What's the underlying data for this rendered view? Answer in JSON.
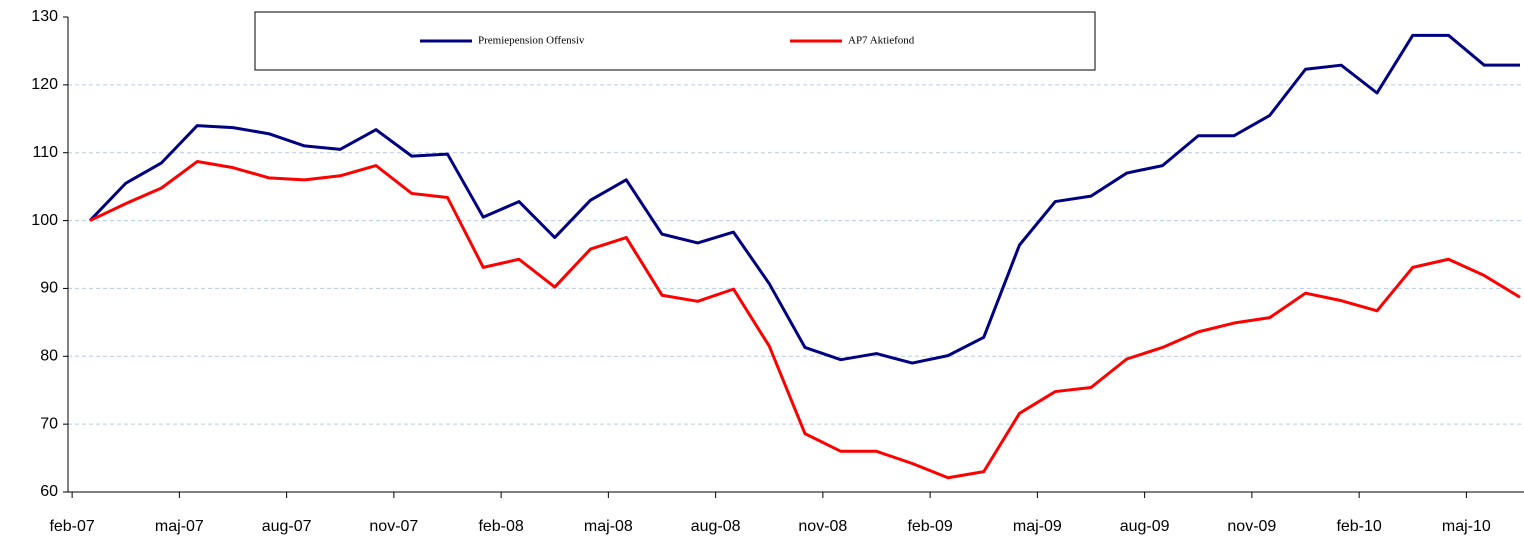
{
  "chart_data": {
    "type": "line",
    "categories": [
      "feb-07",
      null,
      null,
      "maj-07",
      null,
      null,
      "aug-07",
      null,
      null,
      "nov-07",
      null,
      null,
      "feb-08",
      null,
      null,
      "maj-08",
      null,
      null,
      "aug-08",
      null,
      null,
      "nov-08",
      null,
      null,
      "feb-09",
      null,
      null,
      "maj-09",
      null,
      null,
      "aug-09",
      null,
      null,
      "nov-09",
      null,
      null,
      "feb-10",
      null,
      null,
      "maj-10",
      null
    ],
    "series": [
      {
        "name": "Premiepension Offensiv",
        "color": "#000080",
        "values": [
          100,
          105.5,
          108.5,
          114,
          113.7,
          112.8,
          111,
          110.5,
          113.4,
          109.5,
          109.8,
          100.5,
          102.8,
          97.5,
          103,
          106,
          98,
          96.7,
          98.3,
          90.7,
          81.3,
          79.5,
          80.4,
          79,
          80.1,
          82.8,
          96.4,
          102.8,
          103.6,
          107,
          108.1,
          112.5,
          112.5,
          115.5,
          122.3,
          122.9,
          118.8,
          127.3,
          127.3,
          122.9,
          122.9
        ]
      },
      {
        "name": "AP7 Aktiefond",
        "color": "#ff0000",
        "values": [
          100,
          102.5,
          104.8,
          108.7,
          107.8,
          106.3,
          106,
          106.6,
          108.1,
          104,
          103.4,
          93.1,
          94.3,
          90.2,
          95.8,
          97.5,
          89,
          88.1,
          89.9,
          81.5,
          68.6,
          66,
          66,
          64.2,
          62.1,
          63,
          71.6,
          74.8,
          75.4,
          79.6,
          81.3,
          83.6,
          84.9,
          85.7,
          89.3,
          88.2,
          86.7,
          93.1,
          94.3,
          91.9,
          88.7
        ]
      }
    ],
    "ylim": [
      60,
      130
    ],
    "yticks": [
      60,
      70,
      80,
      90,
      100,
      110,
      120,
      130
    ],
    "grid": true,
    "legend": "top"
  }
}
